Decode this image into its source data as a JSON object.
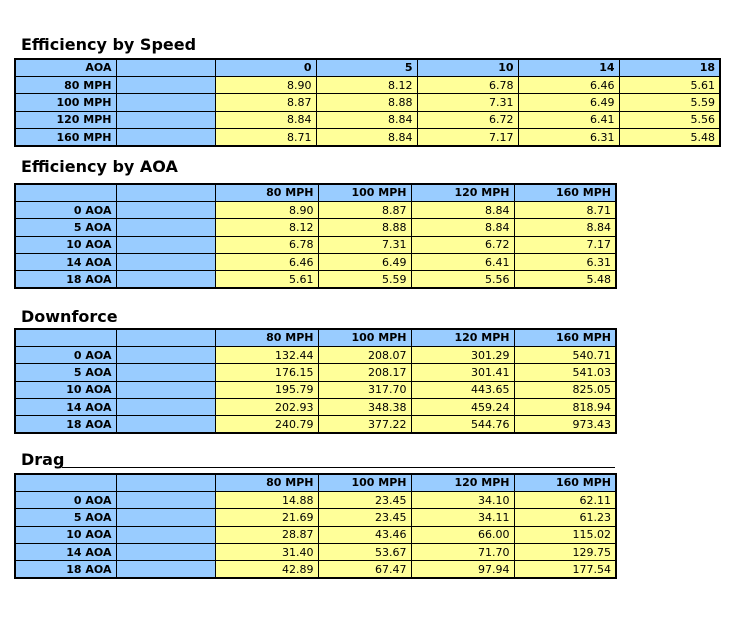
{
  "colors": {
    "header_blue": "#99CCFF",
    "cell_yellow": "#FFFF99",
    "border": "#000000",
    "text": "#000000",
    "background": "#FFFFFF"
  },
  "tables": [
    {
      "title": "Efficiency by Speed",
      "corner_label": "AOA",
      "col_headers": [
        "0",
        "5",
        "10",
        "14",
        "18"
      ],
      "rows": [
        {
          "label": "80 MPH",
          "values": [
            "8.90",
            "8.12",
            "6.78",
            "6.46",
            "5.61"
          ]
        },
        {
          "label": "100 MPH",
          "values": [
            "8.87",
            "8.88",
            "7.31",
            "6.49",
            "5.59"
          ]
        },
        {
          "label": "120 MPH",
          "values": [
            "8.84",
            "8.84",
            "6.72",
            "6.41",
            "5.56"
          ]
        },
        {
          "label": "160 MPH",
          "values": [
            "8.71",
            "8.84",
            "7.17",
            "6.31",
            "5.48"
          ]
        }
      ]
    },
    {
      "title": "Efficiency by AOA",
      "corner_label": "",
      "col_headers": [
        "80 MPH",
        "100 MPH",
        "120 MPH",
        "160 MPH"
      ],
      "rows": [
        {
          "label": "0 AOA",
          "values": [
            "8.90",
            "8.87",
            "8.84",
            "8.71"
          ]
        },
        {
          "label": "5 AOA",
          "values": [
            "8.12",
            "8.88",
            "8.84",
            "8.84"
          ]
        },
        {
          "label": "10 AOA",
          "values": [
            "6.78",
            "7.31",
            "6.72",
            "7.17"
          ]
        },
        {
          "label": "14 AOA",
          "values": [
            "6.46",
            "6.49",
            "6.41",
            "6.31"
          ]
        },
        {
          "label": "18 AOA",
          "values": [
            "5.61",
            "5.59",
            "5.56",
            "5.48"
          ]
        }
      ]
    },
    {
      "title": "Downforce",
      "corner_label": "",
      "col_headers": [
        "80 MPH",
        "100 MPH",
        "120 MPH",
        "160 MPH"
      ],
      "rows": [
        {
          "label": "0 AOA",
          "values": [
            "132.44",
            "208.07",
            "301.29",
            "540.71"
          ]
        },
        {
          "label": "5 AOA",
          "values": [
            "176.15",
            "208.17",
            "301.41",
            "541.03"
          ]
        },
        {
          "label": "10 AOA",
          "values": [
            "195.79",
            "317.70",
            "443.65",
            "825.05"
          ]
        },
        {
          "label": "14 AOA",
          "values": [
            "202.93",
            "348.38",
            "459.24",
            "818.94"
          ]
        },
        {
          "label": "18 AOA",
          "values": [
            "240.79",
            "377.22",
            "544.76",
            "973.43"
          ]
        }
      ]
    },
    {
      "title": "Drag",
      "corner_label": "",
      "col_headers": [
        "80 MPH",
        "100 MPH",
        "120 MPH",
        "160 MPH"
      ],
      "rows": [
        {
          "label": "0 AOA",
          "values": [
            "14.88",
            "23.45",
            "34.10",
            "62.11"
          ]
        },
        {
          "label": "5 AOA",
          "values": [
            "21.69",
            "23.45",
            "34.11",
            "61.23"
          ]
        },
        {
          "label": "10 AOA",
          "values": [
            "28.87",
            "43.46",
            "66.00",
            "115.02"
          ]
        },
        {
          "label": "14 AOA",
          "values": [
            "31.40",
            "53.67",
            "71.70",
            "129.75"
          ]
        },
        {
          "label": "18 AOA",
          "values": [
            "42.89",
            "67.47",
            "97.94",
            "177.54"
          ]
        }
      ]
    }
  ]
}
